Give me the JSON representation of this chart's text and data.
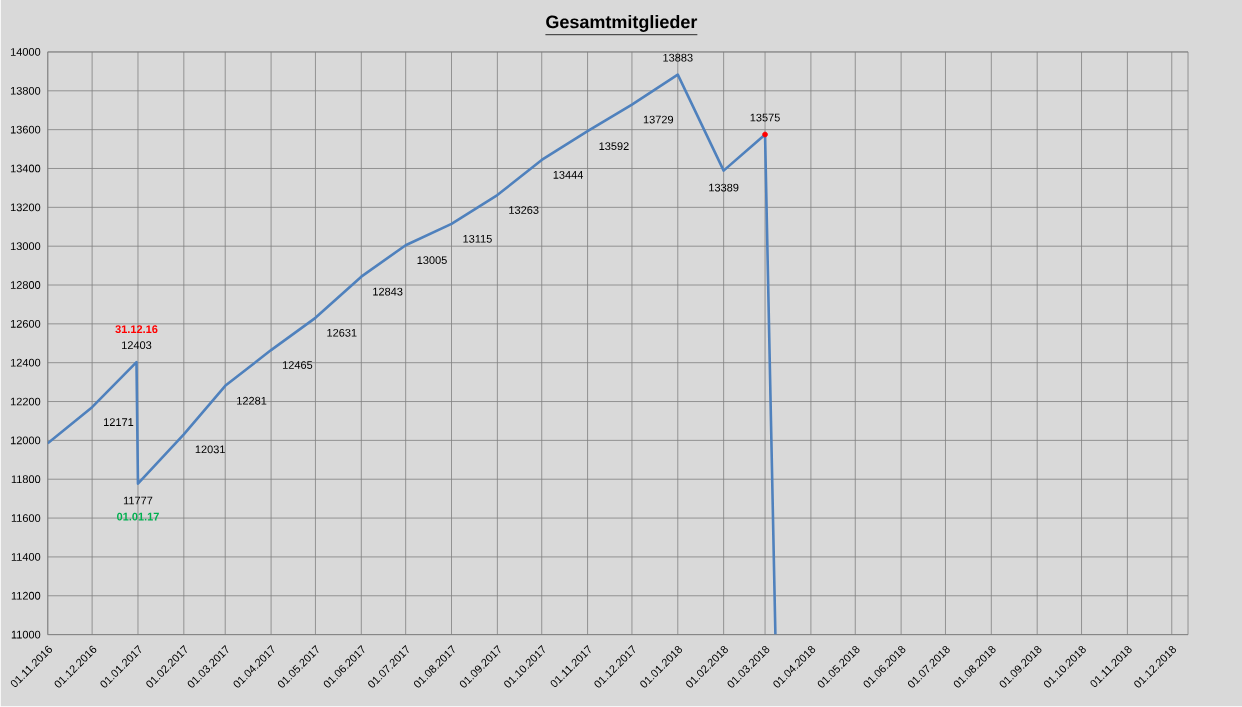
{
  "chart_data": {
    "type": "line",
    "title": "Gesamtmitglieder",
    "xlim": [
      "2016-11-01",
      "2018-12-12"
    ],
    "xticks": [
      {
        "value": "2016-11-01",
        "label": "01.11.2016"
      },
      {
        "value": "2016-12-01",
        "label": "01.12.2016"
      },
      {
        "value": "2017-01-01",
        "label": "01.01.2017"
      },
      {
        "value": "2017-02-01",
        "label": "01.02.2017"
      },
      {
        "value": "2017-03-01",
        "label": "01.03.2017"
      },
      {
        "value": "2017-04-01",
        "label": "01.04.2017"
      },
      {
        "value": "2017-05-01",
        "label": "01.05.2017"
      },
      {
        "value": "2017-06-01",
        "label": "01.06.2017"
      },
      {
        "value": "2017-07-01",
        "label": "01.07.2017"
      },
      {
        "value": "2017-08-01",
        "label": "01.08.2017"
      },
      {
        "value": "2017-09-01",
        "label": "01.09.2017"
      },
      {
        "value": "2017-10-01",
        "label": "01.10.2017"
      },
      {
        "value": "2017-11-01",
        "label": "01.11.2017"
      },
      {
        "value": "2017-12-01",
        "label": "01.12.2017"
      },
      {
        "value": "2018-01-01",
        "label": "01.01.2018"
      },
      {
        "value": "2018-02-01",
        "label": "01.02.2018"
      },
      {
        "value": "2018-03-01",
        "label": "01.03.2018"
      },
      {
        "value": "2018-04-01",
        "label": "01.04.2018"
      },
      {
        "value": "2018-05-01",
        "label": "01.05.2018"
      },
      {
        "value": "2018-06-01",
        "label": "01.06.2018"
      },
      {
        "value": "2018-07-01",
        "label": "01.07.2018"
      },
      {
        "value": "2018-08-01",
        "label": "01.08.2018"
      },
      {
        "value": "2018-09-01",
        "label": "01.09.2018"
      },
      {
        "value": "2018-10-01",
        "label": "01.10.2018"
      },
      {
        "value": "2018-11-01",
        "label": "01.11.2018"
      },
      {
        "value": "2018-12-01",
        "label": "01.12.2018"
      }
    ],
    "ylim": [
      11000,
      14000
    ],
    "yticks": [
      11000,
      11200,
      11400,
      11600,
      11800,
      12000,
      12200,
      12400,
      12600,
      12800,
      13000,
      13200,
      13400,
      13600,
      13800,
      14000
    ],
    "grid": true,
    "series": [
      {
        "color": "#4f81bd",
        "marker": "none",
        "x": [
          "2016-11-01",
          "2016-12-01",
          "2016-12-31",
          "2017-01-01",
          "2017-02-01",
          "2017-03-01",
          "2017-04-01",
          "2017-05-01",
          "2017-06-01",
          "2017-07-01",
          "2017-08-01",
          "2017-09-01",
          "2017-10-01",
          "2017-11-01",
          "2017-12-01",
          "2018-01-01",
          "2018-02-01",
          "2018-03-01",
          "2018-03-08"
        ],
        "values": [
          11985,
          12171,
          12403,
          11777,
          12031,
          12281,
          12465,
          12631,
          12843,
          13005,
          13115,
          13263,
          13444,
          13592,
          13729,
          13883,
          13389,
          13575,
          11000
        ],
        "value_labels": [
          null,
          "12171",
          "12403",
          "11777",
          "12031",
          "12281",
          "12465",
          "12631",
          "12843",
          "13005",
          "13115",
          "13263",
          "13444",
          "13592",
          "13729",
          "13883",
          "13389",
          "13575",
          null
        ]
      },
      {
        "type": "scatter",
        "color": "#ff0000",
        "marker": "circle",
        "x": [
          "2018-03-01"
        ],
        "values": [
          13575
        ]
      }
    ],
    "annotations": [
      {
        "text": "31.12.16",
        "x": "2016-12-31",
        "y": 12403
      },
      {
        "text": "01.01.17",
        "x": "2017-01-01",
        "y": 11777
      }
    ]
  }
}
